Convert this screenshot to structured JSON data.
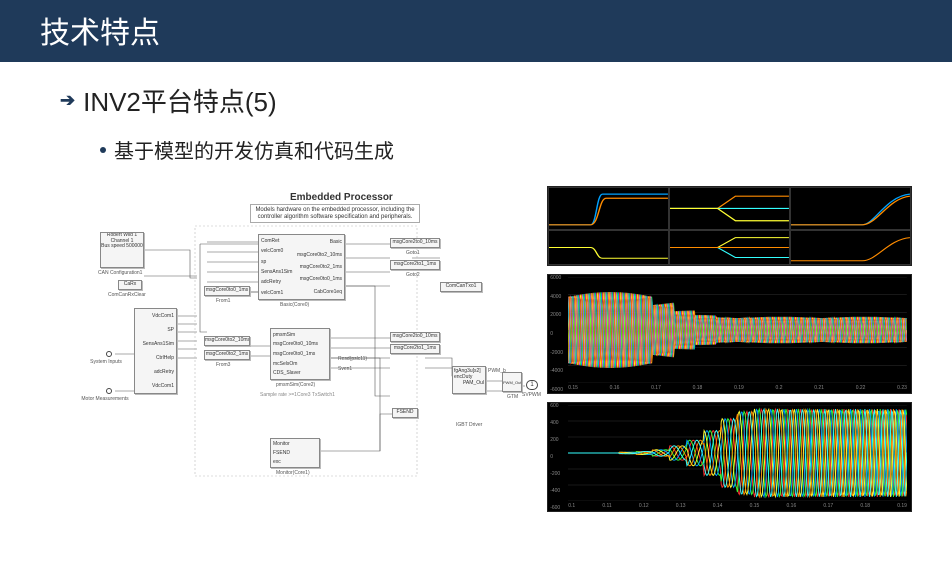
{
  "slide": {
    "title": "技术特点",
    "heading": "INV2平台特点(5)",
    "sub": "基于模型的开发仿真和代码生成"
  },
  "colors": {
    "title_bg": "#1f3a5a",
    "title_fg": "#ffffff",
    "scope_bg": "#000000",
    "scope_grid": "#333333",
    "axis_text": "#888888",
    "series": {
      "a": "#00a2ff",
      "b": "#ff8c00",
      "c": "#ffff33",
      "d": "#33ff33",
      "e": "#ff3030",
      "f": "#33ffff",
      "g": "#cc66ff"
    }
  },
  "diagram": {
    "title": "Embedded Processor",
    "caption": "Models hardware on the embedded processor, including the controller algorithm software specification and peripherals.",
    "left_labels": {
      "system_inputs": "System Inputs",
      "motor_meas": "Motor Measurements"
    },
    "left_block": {
      "l1": "Robert Wild 1",
      "l2": "Channel 1",
      "l3": "Bus speed 500000",
      "l4": "CAN Configuration1"
    },
    "can_rx": "CaRx",
    "can_pack": "ComCanRxClear",
    "mux_inputs": [
      "VdcCom1",
      "SP",
      "SensAns1Sim",
      "CtrlHelp",
      "adcRetry",
      "VdcCom1"
    ],
    "proc_inputs": [
      "ComRet",
      "velcCom0",
      "sp",
      "SensAns1Sim",
      "adcRetry",
      "velcCom1"
    ],
    "proc_outputs": [
      "Basic",
      "msgCore0to2_10ms",
      "msgCore0to2_1ms",
      "msgCore0to0_1ms",
      "CabCore1eq"
    ],
    "proc_caption": "Basic(Core0)",
    "proc_in_tag": "msgCore0to0_1ms",
    "proc_in_below": "From1",
    "mid_in_tags": [
      "msgCore0to2_10ms",
      "msgCore0to2_1ms"
    ],
    "mid_in_below": "From3",
    "mid_inputs": [
      "pmsmSim",
      "msgCore0to0_10ms",
      "msgCore0to0_1ms",
      "mcSelsOm",
      "CDS_Slaver"
    ],
    "mid_outputs": [
      "msgCore2to0_10ms",
      "msgCore2to1_1ms",
      "Resd(pslc11)",
      "Sven1"
    ],
    "mid_caption": "pmsmSim(Core2)",
    "sample_caption": "Sample rate >=1Core3 TxSwitch1",
    "top_tags": [
      "msgCore2to0_10ms",
      "msgCore2to1_1ms"
    ],
    "top_tags_below": [
      "Goto1",
      "Goto2"
    ],
    "side_tag": "ComCanTxo1",
    "mon_inputs": [
      "Monitor",
      "FSEND",
      "exc"
    ],
    "mon_caption": "Monitor(Core1)",
    "pwm_block": {
      "in1": "fgAng3u[s2]",
      "in2": "encDuty",
      "out": "PAM_Oul",
      "out2": "PWM_b"
    },
    "gtm_block": {
      "title": "PWM_Out",
      "cap": "GTM"
    },
    "igbt": "IGBT Driver",
    "outport": "SVPWM",
    "out_num": "1"
  },
  "scope_top": {
    "panels": [
      {
        "type": "step_rise",
        "colors": [
          "#00a2ff",
          "#ff8c00"
        ]
      },
      {
        "type": "step_fork",
        "colors": [
          "#ff8c00",
          "#ffff33",
          "#33ffff"
        ]
      },
      {
        "type": "ramp",
        "colors": [
          "#ff8c00",
          "#00a2ff"
        ]
      }
    ],
    "sub_row_colors": [
      "#ffff33",
      "#33ffff",
      "#ff8c00"
    ]
  },
  "scope_mid": {
    "yticks": [
      "6000",
      "4000",
      "2000",
      "0",
      "-2000",
      "-4000",
      "-6000"
    ],
    "xticks": [
      "0.15",
      "0.16",
      "0.17",
      "0.18",
      "0.19",
      "0.2",
      "0.21",
      "0.22",
      "0.23"
    ],
    "amplitude_profile": [
      4300,
      4300,
      4300,
      4300,
      3200,
      2200,
      1700,
      1500,
      1500,
      1500,
      1500,
      1500,
      1500,
      1500,
      1500,
      1500
    ],
    "line_colors": [
      "#ffff33",
      "#ff3030",
      "#00a2ff",
      "#33ff33",
      "#cc66ff",
      "#ff8c00"
    ],
    "freq": 60
  },
  "scope_bot": {
    "yticks": [
      "600",
      "400",
      "200",
      "0",
      "-200",
      "-400",
      "-600"
    ],
    "xticks": [
      "0.1",
      "0.11",
      "0.12",
      "0.13",
      "0.14",
      "0.15",
      "0.16",
      "0.17",
      "0.18",
      "0.19"
    ],
    "amplitude_profile": [
      0,
      0,
      0,
      10,
      20,
      40,
      90,
      160,
      280,
      430,
      520,
      550,
      550,
      550,
      550,
      550,
      550,
      550,
      550,
      550
    ],
    "line_colors": [
      "#ff3030",
      "#33ff33",
      "#00a2ff",
      "#ffff33",
      "#ff8c00",
      "#33ffff"
    ],
    "freq_profile": [
      4,
      4,
      6,
      8,
      10,
      12,
      14,
      16,
      18,
      20,
      22,
      24,
      26,
      28,
      30,
      32,
      34,
      36,
      38,
      40
    ]
  }
}
